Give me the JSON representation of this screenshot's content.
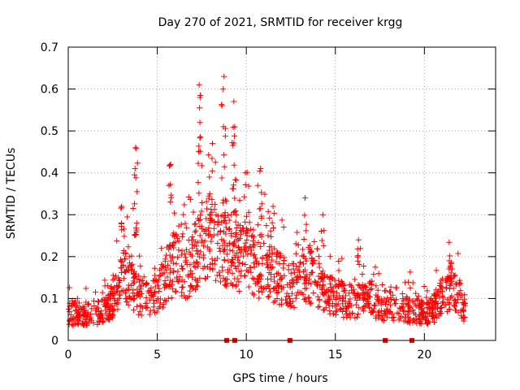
{
  "chart_data": {
    "type": "scatter",
    "title": "Day 270 of 2021, SRMTID for receiver krgg",
    "xlabel": "GPS time / hours",
    "ylabel": "SRMTID / TECUs",
    "xlim": [
      0,
      24
    ],
    "ylim": [
      0,
      0.7
    ],
    "xticks": [
      0,
      5,
      10,
      15,
      20
    ],
    "xtick_labels": [
      "0",
      "5",
      "10",
      "15",
      "20"
    ],
    "yticks": [
      0,
      0.1,
      0.2,
      0.3,
      0.4,
      0.5,
      0.6,
      0.7
    ],
    "ytick_labels": [
      "0",
      "0.1",
      "0.2",
      "0.3",
      "0.4",
      "0.5",
      "0.6",
      "0.7"
    ],
    "grid": true,
    "series": [
      {
        "name": "SRMTID",
        "marker": "plus",
        "color": "#ff0000",
        "envelope": [
          [
            0.0,
            0.06
          ],
          [
            0.5,
            0.06
          ],
          [
            1.0,
            0.06
          ],
          [
            1.5,
            0.06
          ],
          [
            2.0,
            0.07
          ],
          [
            2.5,
            0.09
          ],
          [
            3.0,
            0.15
          ],
          [
            3.5,
            0.13
          ],
          [
            4.0,
            0.1
          ],
          [
            4.5,
            0.09
          ],
          [
            5.0,
            0.11
          ],
          [
            5.5,
            0.14
          ],
          [
            6.0,
            0.18
          ],
          [
            6.5,
            0.17
          ],
          [
            7.0,
            0.16
          ],
          [
            7.5,
            0.22
          ],
          [
            8.0,
            0.24
          ],
          [
            8.5,
            0.22
          ],
          [
            9.0,
            0.2
          ],
          [
            9.5,
            0.19
          ],
          [
            10.0,
            0.21
          ],
          [
            10.5,
            0.17
          ],
          [
            11.0,
            0.16
          ],
          [
            11.5,
            0.15
          ],
          [
            12.0,
            0.14
          ],
          [
            12.5,
            0.13
          ],
          [
            13.0,
            0.13
          ],
          [
            13.5,
            0.15
          ],
          [
            14.0,
            0.13
          ],
          [
            14.5,
            0.11
          ],
          [
            15.0,
            0.1
          ],
          [
            15.5,
            0.09
          ],
          [
            16.0,
            0.09
          ],
          [
            16.5,
            0.09
          ],
          [
            17.0,
            0.1
          ],
          [
            17.5,
            0.08
          ],
          [
            18.0,
            0.08
          ],
          [
            18.5,
            0.07
          ],
          [
            19.0,
            0.07
          ],
          [
            19.5,
            0.07
          ],
          [
            20.0,
            0.06
          ],
          [
            20.5,
            0.07
          ],
          [
            21.0,
            0.1
          ],
          [
            21.5,
            0.12
          ],
          [
            22.0,
            0.09
          ],
          [
            22.3,
            0.07
          ]
        ],
        "peaks": [
          [
            3.78,
            0.46
          ],
          [
            3.75,
            0.41
          ],
          [
            5.75,
            0.42
          ],
          [
            7.35,
            0.61
          ],
          [
            7.4,
            0.58
          ],
          [
            8.1,
            0.47
          ],
          [
            8.75,
            0.63
          ],
          [
            8.7,
            0.6
          ],
          [
            9.3,
            0.57
          ],
          [
            9.35,
            0.51
          ],
          [
            9.95,
            0.4
          ],
          [
            10.8,
            0.41
          ],
          [
            13.3,
            0.34
          ],
          [
            14.3,
            0.3
          ],
          [
            16.3,
            0.24
          ],
          [
            21.4,
            0.19
          ],
          [
            3.0,
            0.32
          ],
          [
            11.5,
            0.32
          ]
        ]
      },
      {
        "name": "gap markers",
        "marker": "square",
        "color": "#ff0000",
        "x": [
          8.9,
          9.35,
          12.45,
          17.8,
          19.3
        ],
        "y": [
          0,
          0,
          0,
          0,
          0
        ]
      }
    ]
  }
}
